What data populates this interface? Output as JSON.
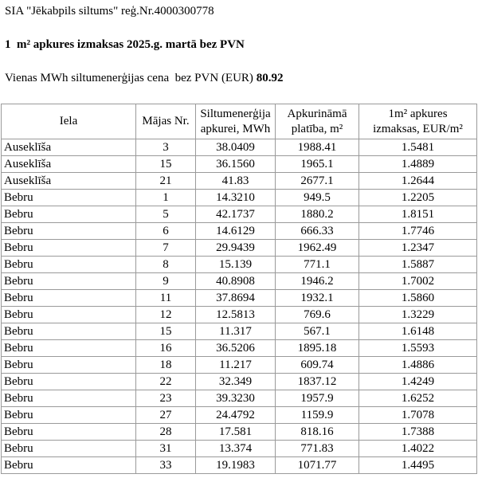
{
  "header": {
    "company": "SIA \"Jēkabpils siltums\" reģ.Nr.4000300778",
    "title": "1  m² apkures izmaksas 2025.g. martā bez PVN",
    "price_label": "Vienas MWh siltumenerģijas cena  bez PVN (EUR)",
    "price_value": "80.92"
  },
  "table": {
    "columns": [
      [
        "Iela"
      ],
      [
        "Mājas Nr."
      ],
      [
        "Siltumenerģija",
        "apkurei, MWh"
      ],
      [
        "Apkurināmā",
        "platība, m²"
      ],
      [
        "1m² apkures",
        "izmaksas, EUR/m²"
      ]
    ],
    "rows": [
      [
        "Auseklīša",
        "3",
        "38.0409",
        "1988.41",
        "1.5481"
      ],
      [
        "Auseklīša",
        "15",
        "36.1560",
        "1965.1",
        "1.4889"
      ],
      [
        "Auseklīša",
        "21",
        "41.83",
        "2677.1",
        "1.2644"
      ],
      [
        "Bebru",
        "1",
        "14.3210",
        "949.5",
        "1.2205"
      ],
      [
        "Bebru",
        "5",
        "42.1737",
        "1880.2",
        "1.8151"
      ],
      [
        "Bebru",
        "6",
        "14.6129",
        "666.33",
        "1.7746"
      ],
      [
        "Bebru",
        "7",
        "29.9439",
        "1962.49",
        "1.2347"
      ],
      [
        "Bebru",
        "8",
        "15.139",
        "771.1",
        "1.5887"
      ],
      [
        "Bebru",
        "9",
        "40.8908",
        "1946.2",
        "1.7002"
      ],
      [
        "Bebru",
        "11",
        "37.8694",
        "1932.1",
        "1.5860"
      ],
      [
        "Bebru",
        "12",
        "12.5813",
        "769.6",
        "1.3229"
      ],
      [
        "Bebru",
        "15",
        "11.317",
        "567.1",
        "1.6148"
      ],
      [
        "Bebru",
        "16",
        "36.5206",
        "1895.18",
        "1.5593"
      ],
      [
        "Bebru",
        "18",
        "11.217",
        "609.74",
        "1.4886"
      ],
      [
        "Bebru",
        "22",
        "32.349",
        "1837.12",
        "1.4249"
      ],
      [
        "Bebru",
        "23",
        "39.3230",
        "1957.9",
        "1.6252"
      ],
      [
        "Bebru",
        "27",
        "24.4792",
        "1159.9",
        "1.7078"
      ],
      [
        "Bebru",
        "28",
        "17.581",
        "818.16",
        "1.7388"
      ],
      [
        "Bebru",
        "31",
        "13.374",
        "771.83",
        "1.4022"
      ],
      [
        "Bebru",
        "33",
        "19.1983",
        "1071.77",
        "1.4495"
      ]
    ]
  }
}
